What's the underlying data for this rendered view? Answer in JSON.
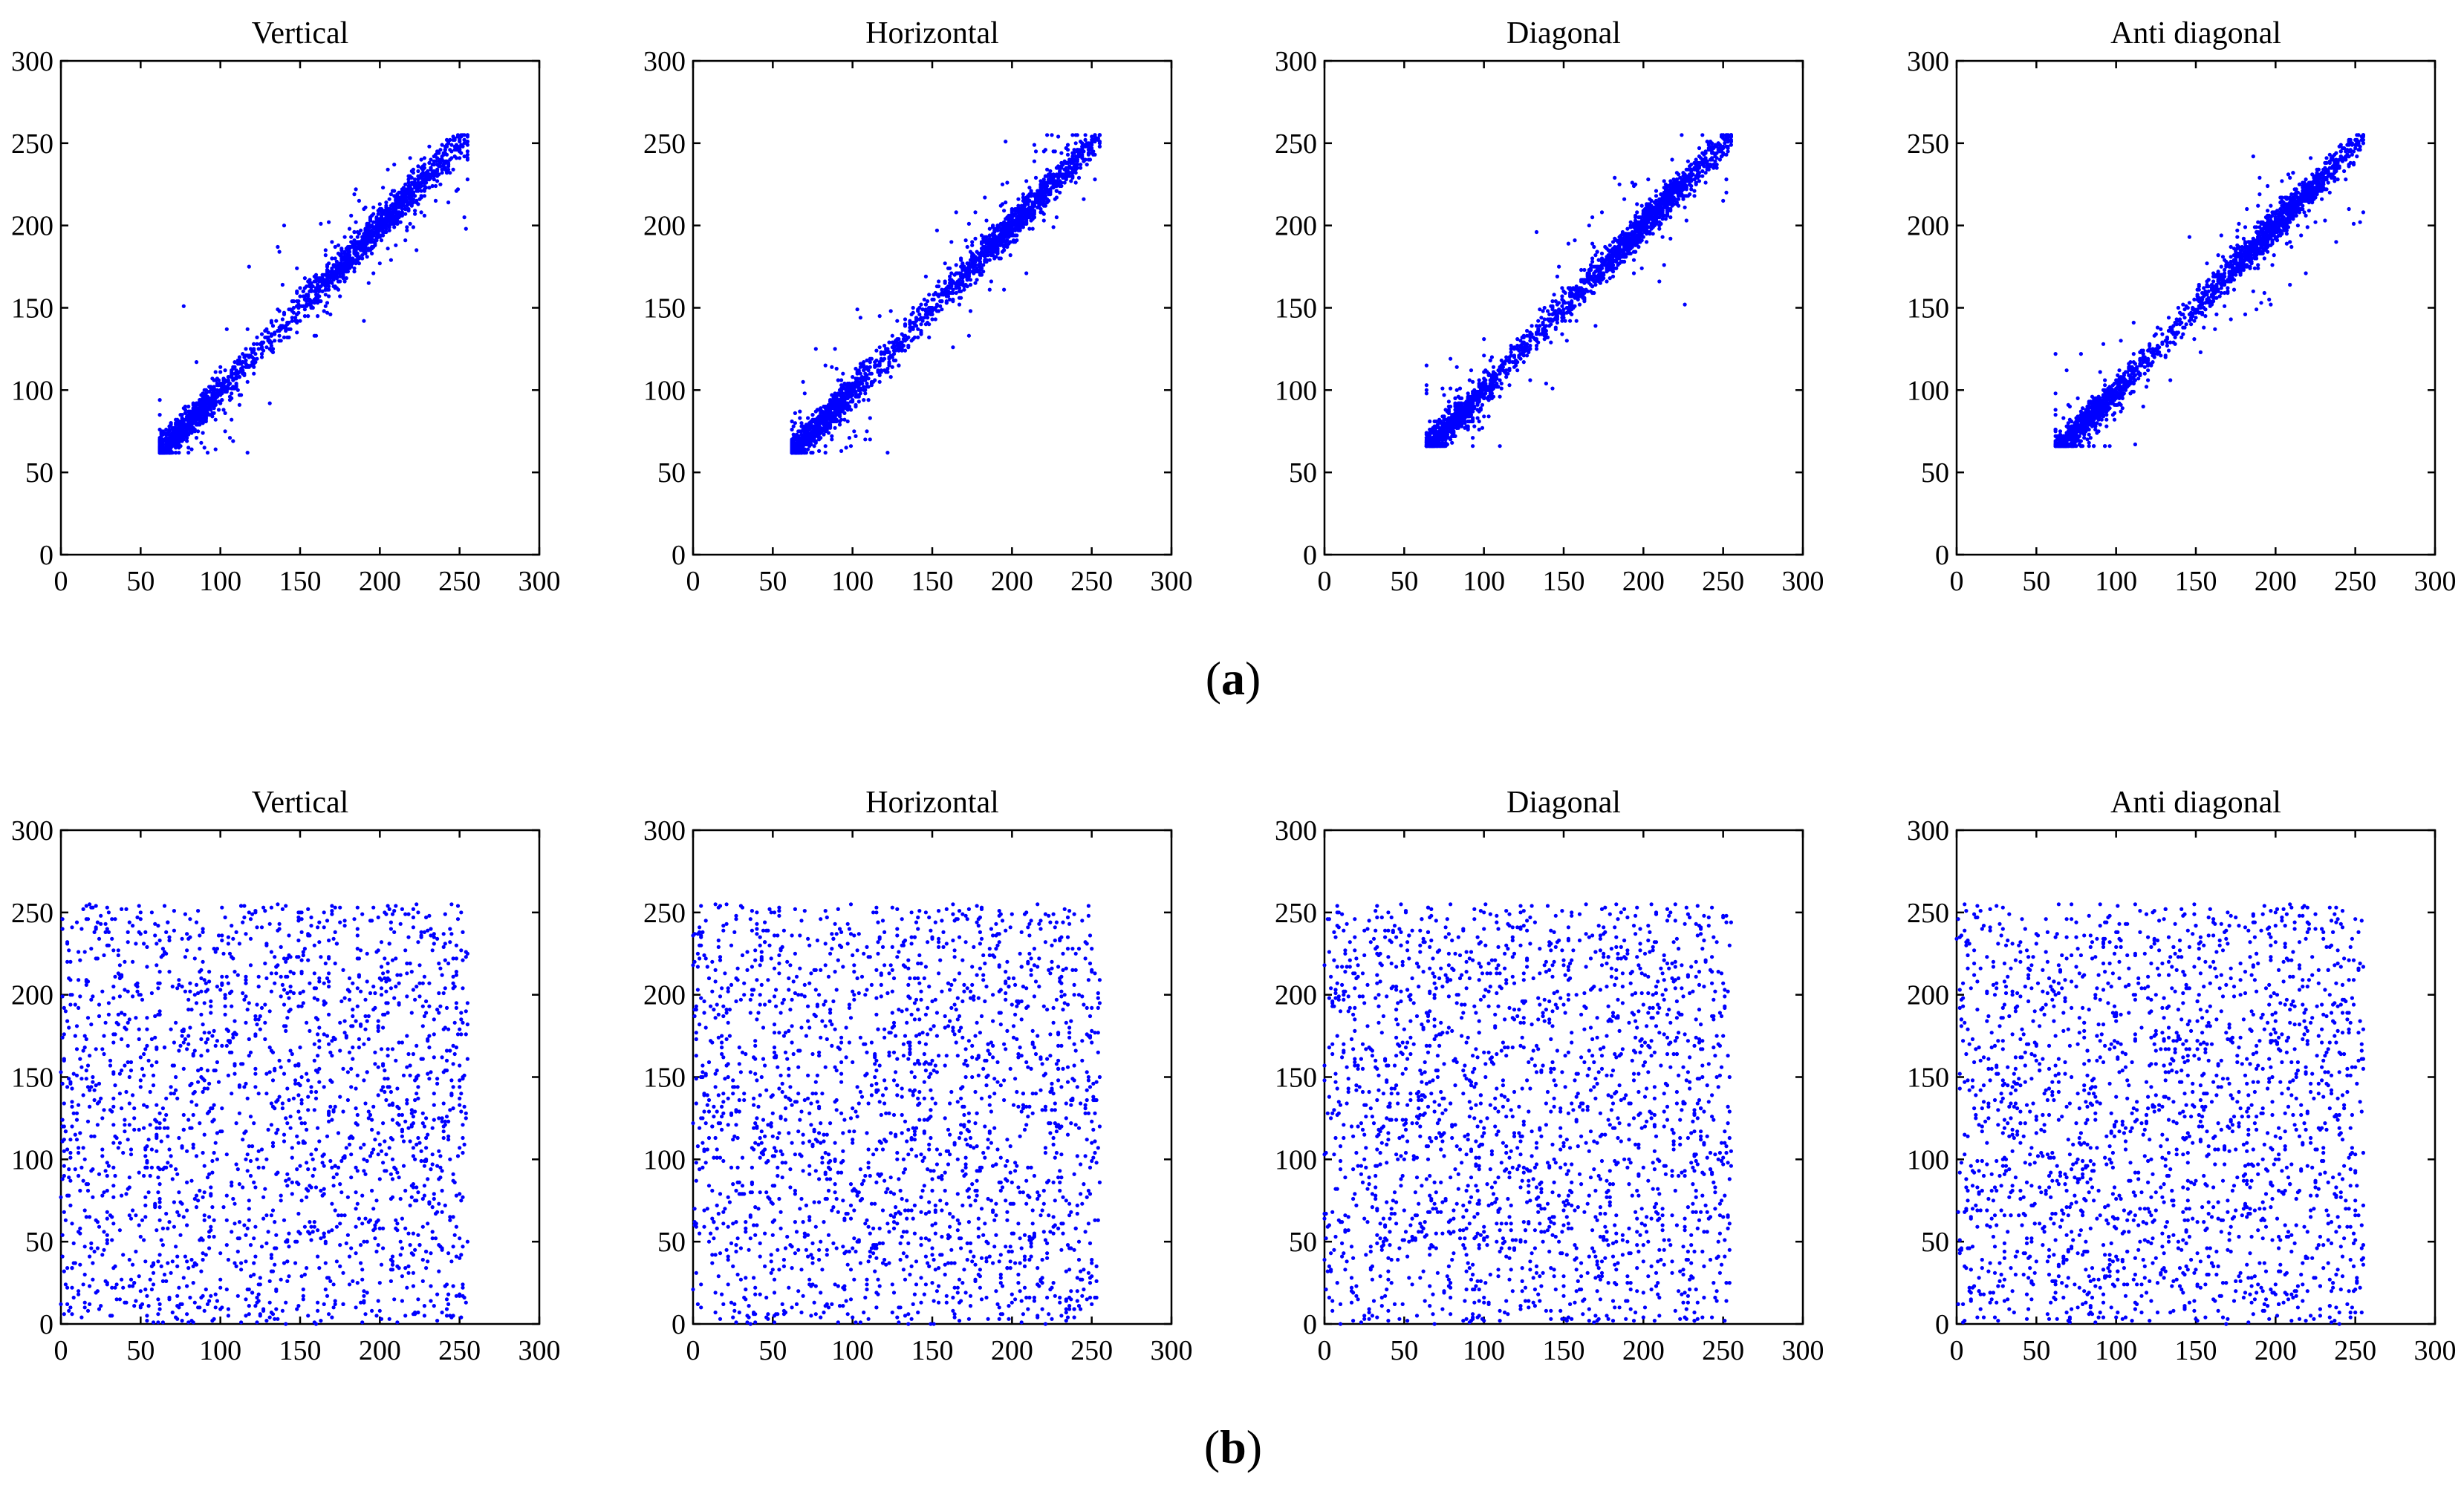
{
  "figure": {
    "row_labels": [
      {
        "open": "(",
        "letter": "a",
        "close": ")"
      },
      {
        "open": "(",
        "letter": "b",
        "close": ")"
      }
    ]
  },
  "chart_data": [
    {
      "type": "scatter",
      "row": "a",
      "title": "Vertical",
      "xlim": [
        0,
        300
      ],
      "ylim": [
        0,
        300
      ],
      "xticks": [
        0,
        50,
        100,
        150,
        200,
        250,
        300
      ],
      "yticks": [
        0,
        50,
        100,
        150,
        200,
        250,
        300
      ],
      "grid": false,
      "marker_color": "#0000ff",
      "distribution": "correlated",
      "x_range": [
        62,
        255
      ],
      "y_range": [
        62,
        255
      ],
      "approx_points": 2000,
      "seed": 11
    },
    {
      "type": "scatter",
      "row": "a",
      "title": "Horizontal",
      "xlim": [
        0,
        300
      ],
      "ylim": [
        0,
        300
      ],
      "xticks": [
        0,
        50,
        100,
        150,
        200,
        250,
        300
      ],
      "yticks": [
        0,
        50,
        100,
        150,
        200,
        250,
        300
      ],
      "grid": false,
      "marker_color": "#0000ff",
      "distribution": "correlated",
      "x_range": [
        62,
        255
      ],
      "y_range": [
        62,
        255
      ],
      "approx_points": 2000,
      "seed": 23
    },
    {
      "type": "scatter",
      "row": "a",
      "title": "Diagonal",
      "xlim": [
        0,
        300
      ],
      "ylim": [
        0,
        300
      ],
      "xticks": [
        0,
        50,
        100,
        150,
        200,
        250,
        300
      ],
      "yticks": [
        0,
        50,
        100,
        150,
        200,
        250,
        300
      ],
      "grid": false,
      "marker_color": "#0000ff",
      "distribution": "correlated",
      "x_range": [
        64,
        255
      ],
      "y_range": [
        66,
        255
      ],
      "approx_points": 2000,
      "seed": 37
    },
    {
      "type": "scatter",
      "row": "a",
      "title": "Anti diagonal",
      "xlim": [
        0,
        300
      ],
      "ylim": [
        0,
        300
      ],
      "xticks": [
        0,
        50,
        100,
        150,
        200,
        250,
        300
      ],
      "yticks": [
        0,
        50,
        100,
        150,
        200,
        250,
        300
      ],
      "grid": false,
      "marker_color": "#0000ff",
      "distribution": "correlated",
      "x_range": [
        62,
        255
      ],
      "y_range": [
        66,
        255
      ],
      "approx_points": 2000,
      "seed": 41
    },
    {
      "type": "scatter",
      "row": "b",
      "title": "Vertical",
      "xlim": [
        0,
        300
      ],
      "ylim": [
        0,
        300
      ],
      "xticks": [
        0,
        50,
        100,
        150,
        200,
        250,
        300
      ],
      "yticks": [
        0,
        50,
        100,
        150,
        200,
        250,
        300
      ],
      "grid": false,
      "marker_color": "#0000ff",
      "distribution": "uniform",
      "x_range": [
        0,
        255
      ],
      "y_range": [
        0,
        255
      ],
      "approx_points": 2000,
      "seed": 53
    },
    {
      "type": "scatter",
      "row": "b",
      "title": "Horizontal",
      "xlim": [
        0,
        300
      ],
      "ylim": [
        0,
        300
      ],
      "xticks": [
        0,
        50,
        100,
        150,
        200,
        250,
        300
      ],
      "yticks": [
        0,
        50,
        100,
        150,
        200,
        250,
        300
      ],
      "grid": false,
      "marker_color": "#0000ff",
      "distribution": "uniform",
      "x_range": [
        0,
        255
      ],
      "y_range": [
        0,
        255
      ],
      "approx_points": 2000,
      "seed": 67
    },
    {
      "type": "scatter",
      "row": "b",
      "title": "Diagonal",
      "xlim": [
        0,
        300
      ],
      "ylim": [
        0,
        300
      ],
      "xticks": [
        0,
        50,
        100,
        150,
        200,
        250,
        300
      ],
      "yticks": [
        0,
        50,
        100,
        150,
        200,
        250,
        300
      ],
      "grid": false,
      "marker_color": "#0000ff",
      "distribution": "uniform",
      "x_range": [
        0,
        255
      ],
      "y_range": [
        0,
        255
      ],
      "approx_points": 2000,
      "seed": 79
    },
    {
      "type": "scatter",
      "row": "b",
      "title": "Anti diagonal",
      "xlim": [
        0,
        300
      ],
      "ylim": [
        0,
        300
      ],
      "xticks": [
        0,
        50,
        100,
        150,
        200,
        250,
        300
      ],
      "yticks": [
        0,
        50,
        100,
        150,
        200,
        250,
        300
      ],
      "grid": false,
      "marker_color": "#0000ff",
      "distribution": "uniform",
      "x_range": [
        0,
        255
      ],
      "y_range": [
        0,
        255
      ],
      "approx_points": 2000,
      "seed": 97
    }
  ]
}
